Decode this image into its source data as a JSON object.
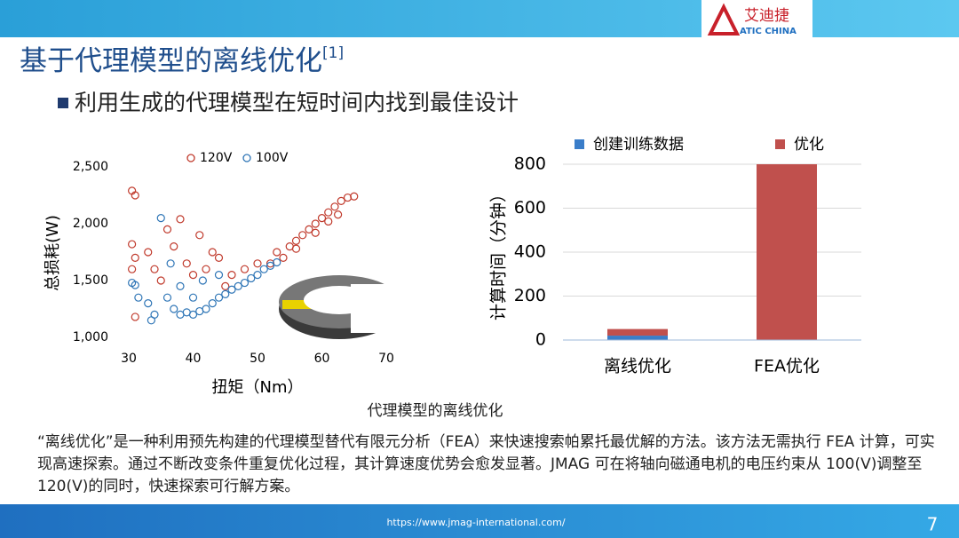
{
  "header": {
    "logo": "艾迪捷",
    "logo_sub": "ATIC CHINA",
    "title": "基于代理模型的离线优化",
    "title_ref": "[1]"
  },
  "bullet": "利用生成的代理模型在短时间内找到最佳设计",
  "chart_data": [
    {
      "type": "scatter",
      "xlabel": "扭矩（Nm）",
      "ylabel": "总损耗(W)",
      "xlim": [
        30,
        70
      ],
      "ylim": [
        1000,
        2500
      ],
      "xticks": [
        30,
        40,
        50,
        60,
        70
      ],
      "yticks": [
        {
          "value": 1000,
          "label": "1,000"
        },
        {
          "value": 1500,
          "label": "1,500"
        },
        {
          "value": 2000,
          "label": "2,000"
        },
        {
          "value": 2500,
          "label": "2,500"
        }
      ],
      "series": [
        {
          "name": "120V",
          "color": "#c0392b",
          "x": [
            30.5,
            31,
            30.5,
            31,
            30.5,
            31,
            33,
            34,
            35,
            36,
            37,
            38,
            39,
            40,
            41,
            42,
            43,
            44,
            45,
            46,
            48,
            50,
            52,
            54,
            55,
            56,
            57,
            58,
            59,
            60,
            61,
            62,
            63,
            64,
            65,
            53,
            56,
            59,
            61,
            62.5
          ],
          "values": [
            2290,
            2250,
            1820,
            1700,
            1600,
            1180,
            1750,
            1600,
            1500,
            1950,
            1800,
            2040,
            1650,
            1550,
            1900,
            1600,
            1750,
            1700,
            1450,
            1550,
            1600,
            1650,
            1650,
            1700,
            1800,
            1850,
            1900,
            1950,
            2000,
            2050,
            2100,
            2150,
            2200,
            2230,
            2240,
            1750,
            1780,
            1920,
            2020,
            2080
          ]
        },
        {
          "name": "100V",
          "color": "#2e75b6",
          "x": [
            30.5,
            31,
            31.5,
            33,
            34,
            35,
            36,
            37,
            38,
            39,
            40,
            40,
            41,
            42,
            43,
            44,
            45,
            46,
            47,
            48,
            49,
            50,
            51,
            52,
            53,
            41.5,
            44,
            38,
            36.5,
            33.5
          ],
          "values": [
            1480,
            1460,
            1350,
            1300,
            1200,
            2050,
            1350,
            1250,
            1200,
            1220,
            1200,
            1350,
            1230,
            1250,
            1300,
            1350,
            1380,
            1420,
            1450,
            1480,
            1520,
            1550,
            1600,
            1630,
            1660,
            1500,
            1550,
            1450,
            1650,
            1150
          ]
        }
      ]
    },
    {
      "type": "bar",
      "stacked": true,
      "ylabel": "计算时间（分钟）",
      "categories": [
        "离线优化",
        "FEA优化"
      ],
      "ylim": [
        0,
        800
      ],
      "yticks": [
        0,
        200,
        400,
        600,
        800
      ],
      "grid": true,
      "series": [
        {
          "name": "创建训练数据",
          "color": "#3a7dc9",
          "values": [
            20,
            0
          ]
        },
        {
          "name": "优化",
          "color": "#c0504d",
          "values": [
            30,
            800
          ]
        }
      ]
    }
  ],
  "caption": "代理模型的离线优化",
  "paragraph": "“离线优化”是一种利用预先构建的代理模型替代有限元分析（FEA）来快速搜索帕累托最优解的方法。该方法无需执行 FEA 计算，可实现高速探索。通过不断改变条件重复优化过程，其计算速度优势会愈发显著。JMAG 可在将轴向磁通电机的电压约束从 100(V)调整至 120(V)的同时，快速探索可行解方案。",
  "footer": {
    "url": "https://www.jmag-international.com/",
    "page": "7"
  }
}
